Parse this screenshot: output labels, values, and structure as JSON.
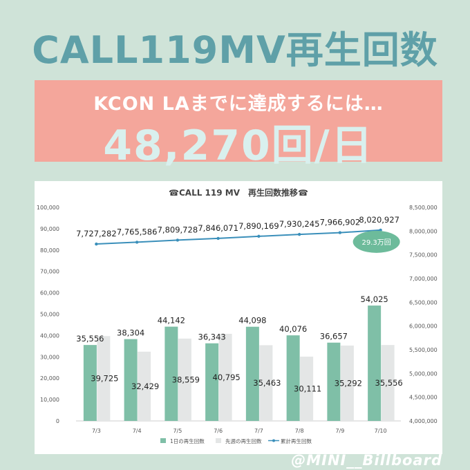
{
  "header": {
    "title": "CALL119MV再生回数"
  },
  "banner": {
    "subtitle": "KCON LAまでに達成するには…",
    "value": "48,270回/日"
  },
  "callout": {
    "text": "29.3万回"
  },
  "credit": {
    "handle": "@MINI__Billboard"
  },
  "colors": {
    "bar_daily": "#7fbfa7",
    "bar_lastweek": "#e4e6e6",
    "line_cumulative": "#3a8fba",
    "callout": "#6dbb9b",
    "headline": "#5fa0a8",
    "banner": "#f4a69b"
  },
  "chart_data": {
    "type": "bar",
    "title": "☎CALL 119 MV　再生回数推移☎",
    "categories": [
      "7/3",
      "7/4",
      "7/5",
      "7/6",
      "7/7",
      "7/8",
      "7/9",
      "7/10"
    ],
    "series": [
      {
        "name": "1日の再生回数",
        "type": "bar",
        "axis": "left",
        "values": [
          35556,
          38304,
          44142,
          36343,
          44098,
          40076,
          36657,
          54025
        ]
      },
      {
        "name": "先週の再生回数",
        "type": "bar",
        "axis": "left",
        "values": [
          39725,
          32429,
          38559,
          40795,
          35463,
          30111,
          35292,
          35556
        ]
      },
      {
        "name": "累計再生回数",
        "type": "line",
        "axis": "right",
        "values": [
          7727282,
          7765586,
          7809728,
          7846071,
          7890169,
          7930245,
          7966902,
          8020927
        ]
      }
    ],
    "ylim": [
      0,
      100000
    ],
    "y2lim": [
      4000000,
      8500000
    ],
    "y_ticks": [
      0,
      10000,
      20000,
      30000,
      40000,
      50000,
      60000,
      70000,
      80000,
      90000,
      100000
    ],
    "y2_ticks": [
      4000000,
      4500000,
      5000000,
      5500000,
      6000000,
      6500000,
      7000000,
      7500000,
      8000000,
      8500000
    ],
    "legend": "bottom"
  }
}
